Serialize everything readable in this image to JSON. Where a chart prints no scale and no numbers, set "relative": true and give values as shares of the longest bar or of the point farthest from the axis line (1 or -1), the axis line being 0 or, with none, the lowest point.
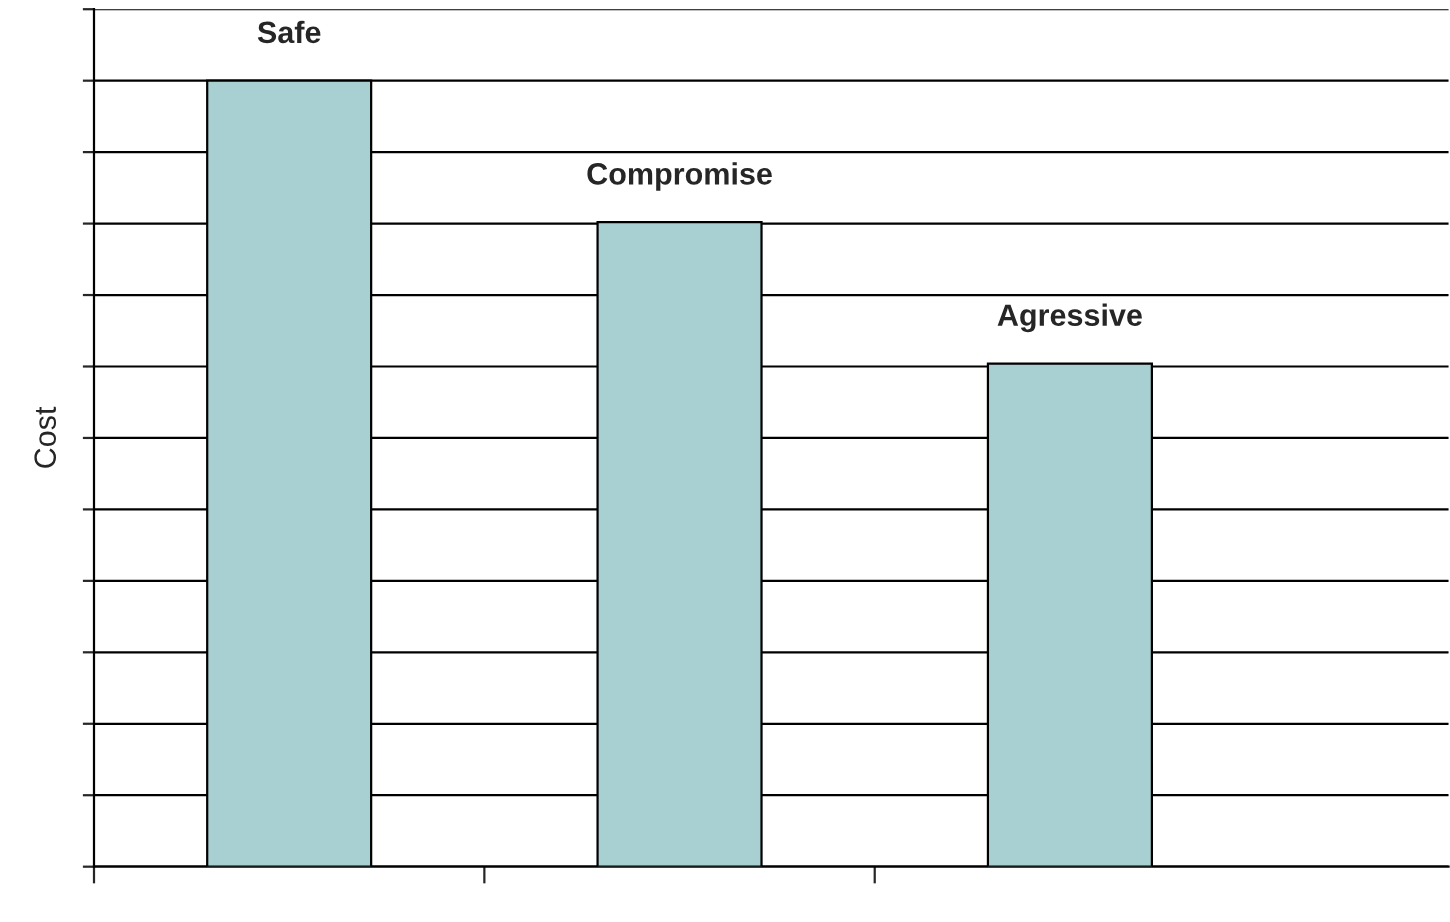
{
  "chart_data": {
    "type": "bar",
    "ylabel": "Cost",
    "relative": true,
    "categories": [
      "Safe",
      "Compromise",
      "Agressive"
    ],
    "values": [
      1,
      0.82,
      0.64
    ],
    "color": "#a8d0d3",
    "grid": "y"
  }
}
